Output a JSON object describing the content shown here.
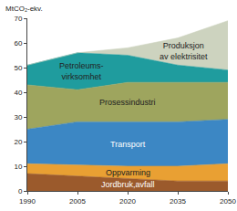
{
  "chart_data": {
    "type": "area",
    "stacked": true,
    "y_label": "MtCO₂-ekv.",
    "x": [
      1990,
      2005,
      2020,
      2035,
      2050
    ],
    "xlim": [
      1990,
      2050
    ],
    "xticks": [
      1990,
      2005,
      2020,
      2035,
      2050
    ],
    "ylim": [
      0,
      70
    ],
    "yticks": [
      0,
      10,
      20,
      30,
      40,
      50,
      60,
      70
    ],
    "grid": false,
    "series": [
      {
        "name": "Jordbruk,avfall",
        "color": "#9b5a2c",
        "values": [
          7,
          6,
          5,
          4,
          4
        ]
      },
      {
        "name": "Oppvarming",
        "color": "#e9a033",
        "values": [
          4,
          4.5,
          5,
          6,
          7
        ]
      },
      {
        "name": "Transport",
        "color": "#3c87c4",
        "values": [
          14,
          17.5,
          18,
          18,
          18
        ]
      },
      {
        "name": "Prosessindustri",
        "color": "#9ea55e",
        "values": [
          18,
          13,
          16,
          16,
          15
        ]
      },
      {
        "name": "Petroleums-\nvirksomhet",
        "color": "#1f9c9e",
        "values": [
          8,
          15,
          11,
          7,
          5
        ]
      },
      {
        "name": "Produksjon\nav elektrisitet",
        "color": "#cdd3bf",
        "values": [
          0,
          0,
          3,
          11,
          20
        ]
      }
    ]
  }
}
